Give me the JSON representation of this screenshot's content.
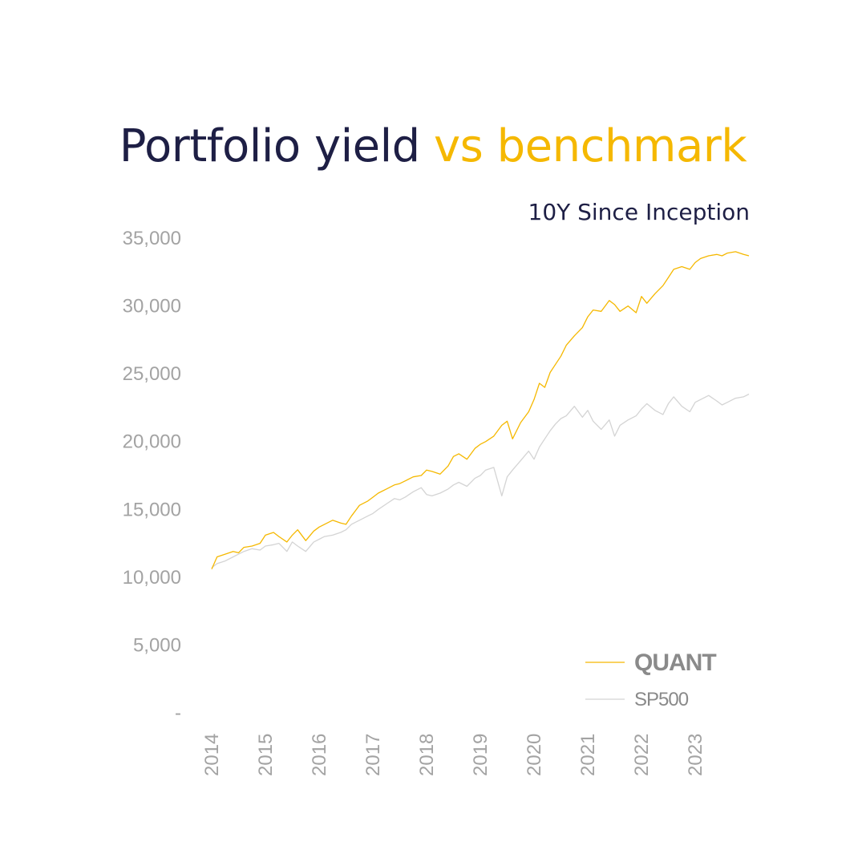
{
  "title": {
    "main": "Portfolio yield",
    "accent": "vs benchmark"
  },
  "subtitle": "10Y Since Inception",
  "colors": {
    "quant": "#f5b800",
    "sp500": "#d4d4d4",
    "title": "#1e1f45",
    "accent": "#f5b800",
    "tick": "#a3a3a3"
  },
  "chart_data": {
    "type": "line",
    "ylim": [
      0,
      35000
    ],
    "y_ticks": [
      "-",
      "5,000",
      "10,000",
      "15,000",
      "20,000",
      "25,000",
      "30,000",
      "35,000"
    ],
    "y_tick_values": [
      0,
      5000,
      10000,
      15000,
      20000,
      25000,
      30000,
      35000
    ],
    "x_ticks": [
      "2014",
      "2015",
      "2016",
      "2017",
      "2018",
      "2019",
      "2020",
      "2021",
      "2022",
      "2023"
    ],
    "xlim": [
      2014.0,
      2024.0
    ],
    "legend": "bottom-right",
    "grid": false,
    "series": [
      {
        "name": "QUANT",
        "x": [
          2014.0,
          2014.1,
          2014.25,
          2014.4,
          2014.5,
          2014.6,
          2014.75,
          2014.9,
          2015.0,
          2015.15,
          2015.25,
          2015.4,
          2015.5,
          2015.6,
          2015.75,
          2015.9,
          2016.0,
          2016.1,
          2016.25,
          2016.4,
          2016.5,
          2016.6,
          2016.75,
          2016.9,
          2017.0,
          2017.1,
          2017.25,
          2017.4,
          2017.5,
          2017.6,
          2017.75,
          2017.9,
          2018.0,
          2018.1,
          2018.25,
          2018.4,
          2018.5,
          2018.6,
          2018.75,
          2018.9,
          2019.0,
          2019.1,
          2019.25,
          2019.4,
          2019.5,
          2019.6,
          2019.75,
          2019.9,
          2020.0,
          2020.1,
          2020.2,
          2020.3,
          2020.4,
          2020.5,
          2020.6,
          2020.75,
          2020.9,
          2021.0,
          2021.1,
          2021.25,
          2021.4,
          2021.5,
          2021.6,
          2021.75,
          2021.9,
          2022.0,
          2022.1,
          2022.25,
          2022.4,
          2022.5,
          2022.6,
          2022.75,
          2022.9,
          2023.0,
          2023.1,
          2023.25,
          2023.4,
          2023.5,
          2023.6,
          2023.75,
          2023.9,
          2024.0
        ],
        "values": [
          10600,
          11500,
          11700,
          11900,
          11800,
          12200,
          12300,
          12500,
          13100,
          13300,
          13000,
          12600,
          13100,
          13500,
          12700,
          13400,
          13700,
          13900,
          14200,
          14000,
          13900,
          14500,
          15300,
          15600,
          15900,
          16200,
          16500,
          16800,
          16900,
          17100,
          17400,
          17500,
          17900,
          17800,
          17600,
          18200,
          18900,
          19100,
          18700,
          19500,
          19800,
          20000,
          20400,
          21200,
          21500,
          20200,
          21400,
          22200,
          23100,
          24300,
          24000,
          25100,
          25700,
          26300,
          27100,
          27800,
          28400,
          29200,
          29700,
          29600,
          30400,
          30100,
          29600,
          30000,
          29500,
          30700,
          30200,
          30900,
          31500,
          32100,
          32700,
          32900,
          32700,
          33200,
          33500,
          33700,
          33800,
          33700,
          33900,
          34000,
          33800,
          33700
        ]
      },
      {
        "name": "SP500",
        "x": [
          2014.0,
          2014.1,
          2014.25,
          2014.4,
          2014.5,
          2014.6,
          2014.75,
          2014.9,
          2015.0,
          2015.15,
          2015.25,
          2015.4,
          2015.5,
          2015.6,
          2015.75,
          2015.9,
          2016.0,
          2016.1,
          2016.25,
          2016.4,
          2016.5,
          2016.6,
          2016.75,
          2016.9,
          2017.0,
          2017.1,
          2017.25,
          2017.4,
          2017.5,
          2017.6,
          2017.75,
          2017.9,
          2018.0,
          2018.1,
          2018.25,
          2018.4,
          2018.5,
          2018.6,
          2018.75,
          2018.9,
          2019.0,
          2019.1,
          2019.25,
          2019.4,
          2019.5,
          2019.6,
          2019.75,
          2019.9,
          2020.0,
          2020.1,
          2020.2,
          2020.3,
          2020.4,
          2020.5,
          2020.6,
          2020.75,
          2020.9,
          2021.0,
          2021.1,
          2021.25,
          2021.4,
          2021.5,
          2021.6,
          2021.75,
          2021.9,
          2022.0,
          2022.1,
          2022.25,
          2022.4,
          2022.5,
          2022.6,
          2022.75,
          2022.9,
          2023.0,
          2023.1,
          2023.25,
          2023.4,
          2023.5,
          2023.6,
          2023.75,
          2023.9,
          2024.0
        ],
        "values": [
          10700,
          11000,
          11200,
          11500,
          11700,
          11900,
          12100,
          12000,
          12300,
          12400,
          12500,
          11900,
          12600,
          12300,
          11900,
          12600,
          12800,
          13000,
          13100,
          13300,
          13500,
          13900,
          14200,
          14500,
          14700,
          15000,
          15400,
          15800,
          15700,
          15900,
          16300,
          16600,
          16100,
          16000,
          16200,
          16500,
          16800,
          17000,
          16700,
          17300,
          17500,
          17900,
          18100,
          16000,
          17400,
          17900,
          18600,
          19300,
          18700,
          19600,
          20200,
          20800,
          21300,
          21700,
          21900,
          22600,
          21800,
          22300,
          21500,
          20900,
          21600,
          20400,
          21200,
          21600,
          21900,
          22400,
          22800,
          22300,
          22000,
          22800,
          23300,
          22600,
          22200,
          22900,
          23100,
          23400,
          23000,
          22700,
          22900,
          23200,
          23300,
          23500
        ]
      }
    ]
  }
}
